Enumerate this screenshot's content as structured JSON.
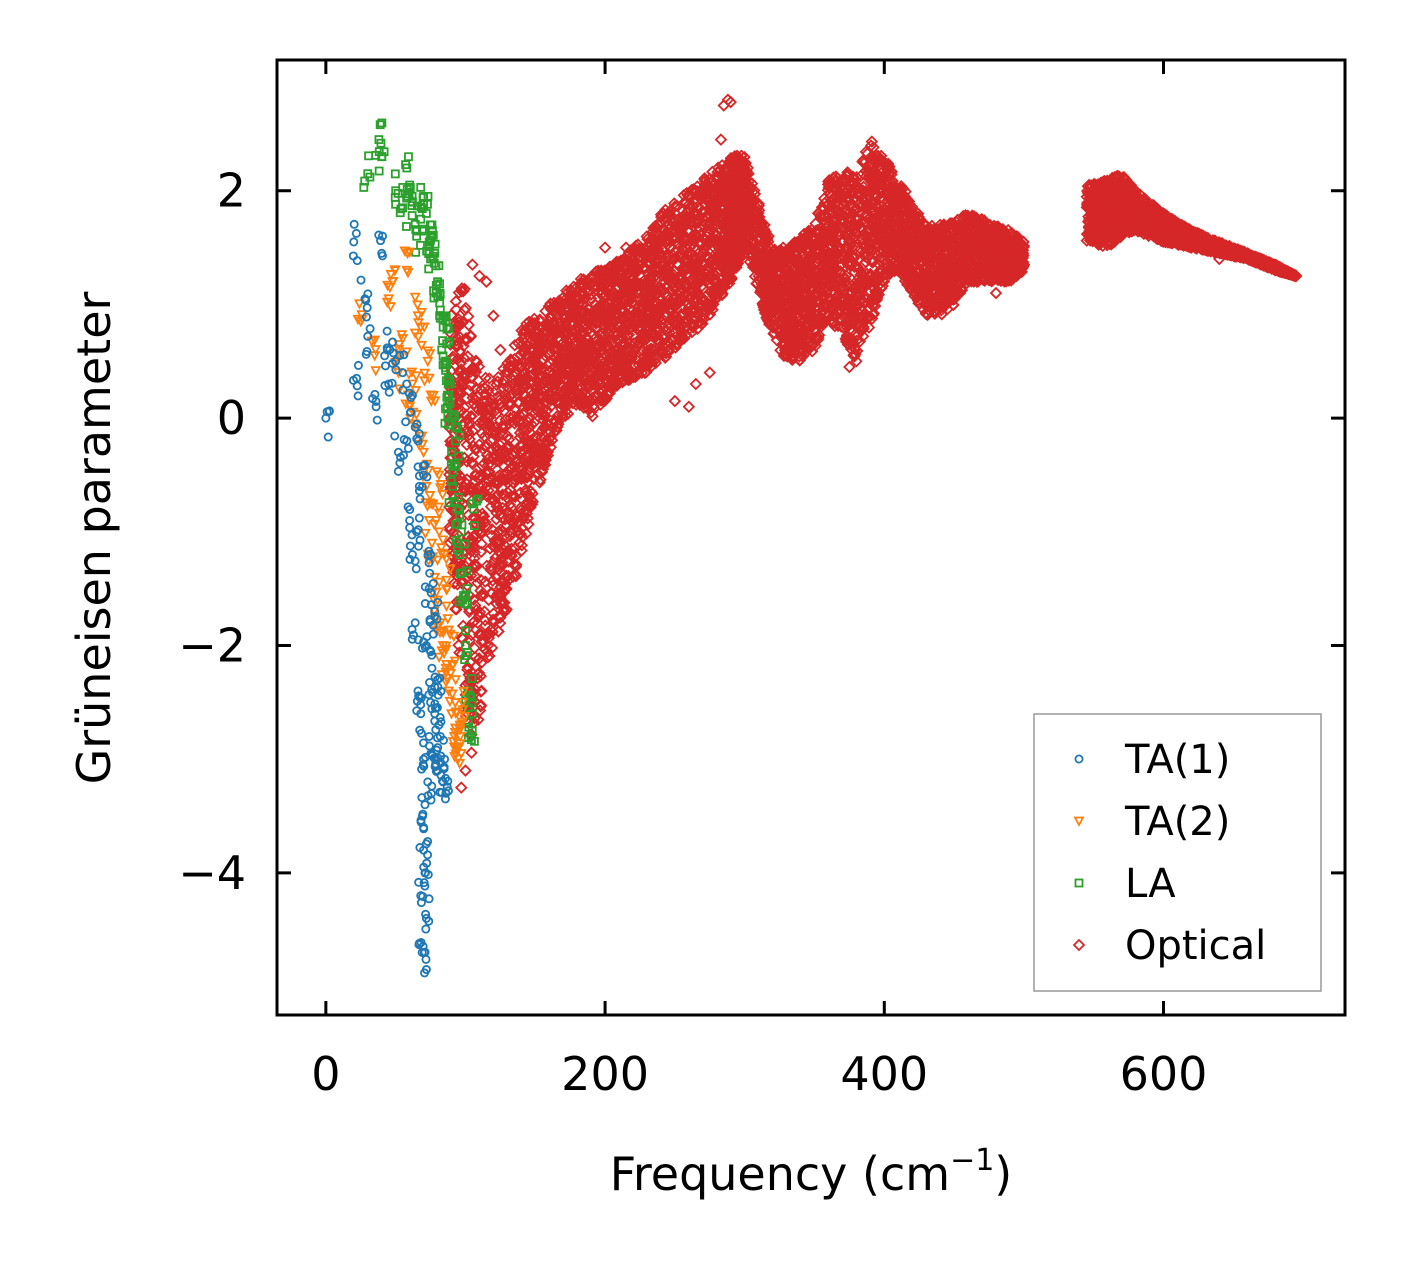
{
  "chart_data": {
    "type": "scatter",
    "title": "",
    "xlabel": "Frequency (cm",
    "xlabel_sup": "−1",
    "xlabel_end": ")",
    "ylabel": "Grüneisen parameter",
    "xlim": [
      -35,
      730
    ],
    "ylim": [
      -5.25,
      3.15
    ],
    "xticks": [
      0,
      200,
      400,
      600
    ],
    "xtick_labels": [
      "0",
      "200",
      "400",
      "600"
    ],
    "yticks": [
      2,
      0,
      -2,
      -4
    ],
    "ytick_labels": [
      "2",
      "0",
      "−2",
      "−4"
    ],
    "grid": false,
    "legend_position": "lower-right",
    "series": [
      {
        "name": "TA(1)",
        "marker": "circle",
        "color": "#1f77b4",
        "x": [
          0,
          20,
          22,
          28,
          30,
          36,
          40,
          44,
          45,
          50,
          52,
          55,
          58,
          60,
          62,
          64,
          66,
          68,
          70,
          70,
          71,
          72,
          72,
          73,
          74,
          75,
          76,
          77,
          78,
          79,
          80,
          82,
          84,
          86,
          68,
          69,
          70,
          71,
          72,
          65,
          67,
          74,
          78,
          80,
          62,
          66,
          70,
          75,
          81,
          85
        ],
        "y": [
          0,
          1.55,
          0.35,
          1.05,
          0.72,
          0.1,
          1.45,
          0.6,
          0.3,
          0.5,
          -0.3,
          0.4,
          -0.2,
          -0.9,
          -1.2,
          -1.8,
          -2.4,
          -2.6,
          -3.0,
          -3.6,
          -4.0,
          -4.4,
          -4.85,
          -3.2,
          -2.8,
          -2.5,
          -2.2,
          -1.9,
          -2.6,
          -3.0,
          -3.1,
          -2.8,
          -3.2,
          -3.3,
          -4.2,
          -4.7,
          -3.8,
          -3.4,
          -2.0,
          -1.0,
          -0.6,
          -1.5,
          -1.7,
          -2.3,
          0.2,
          -0.2,
          -0.5,
          -1.2,
          -2.7,
          -3.0
        ]
      },
      {
        "name": "TA(2)",
        "marker": "triangle-down",
        "color": "#ff7f0e",
        "x": [
          25,
          35,
          45,
          48,
          52,
          55,
          60,
          62,
          65,
          70,
          72,
          74,
          76,
          78,
          80,
          82,
          84,
          86,
          88,
          90,
          92,
          94,
          96,
          98,
          68,
          73,
          77,
          81,
          85,
          89,
          93,
          97,
          58,
          66,
          79,
          87
        ],
        "y": [
          0.85,
          0.55,
          1.05,
          1.2,
          0.4,
          0.7,
          0.1,
          0.3,
          -0.1,
          -0.3,
          -0.6,
          -0.9,
          -1.1,
          -1.4,
          -1.6,
          -1.8,
          -2.0,
          -2.2,
          -2.4,
          -2.6,
          -2.8,
          -2.9,
          -2.7,
          -2.5,
          0.8,
          0.5,
          0.2,
          -0.5,
          -1.2,
          -1.9,
          -2.3,
          -2.95,
          1.3,
          0.9,
          -0.9,
          -1.5
        ]
      },
      {
        "name": "LA",
        "marker": "square",
        "color": "#2ca02c",
        "x": [
          30,
          38,
          40,
          50,
          55,
          58,
          60,
          62,
          65,
          68,
          70,
          72,
          74,
          76,
          78,
          80,
          82,
          84,
          86,
          88,
          90,
          92,
          94,
          96,
          98,
          100,
          102,
          104,
          106,
          85,
          89,
          93,
          97,
          101,
          105,
          75,
          79,
          83,
          87,
          91
        ],
        "y": [
          2.15,
          2.45,
          2.3,
          2.0,
          1.85,
          2.2,
          2.05,
          1.9,
          1.6,
          1.75,
          1.95,
          1.8,
          1.55,
          1.7,
          1.45,
          1.2,
          0.95,
          0.8,
          0.5,
          0.2,
          0.0,
          -0.4,
          -0.8,
          -1.2,
          -1.6,
          -2.0,
          -2.4,
          -2.8,
          -0.8,
          0.9,
          0.3,
          -0.2,
          -1.0,
          -1.5,
          -2.6,
          1.4,
          1.1,
          0.6,
          0.1,
          -0.6
        ]
      },
      {
        "name": "Optical",
        "marker": "diamond",
        "color": "#d62728",
        "bands": [
          {
            "x": [
              88,
              95,
              100,
              105,
              110,
              115,
              120,
              130,
              140,
              150,
              160,
              170,
              180,
              190,
              200,
              210,
              220,
              230,
              240,
              250,
              260,
              270,
              280,
              290,
              300
            ],
            "ylo": [
              -1.0,
              -2.0,
              -2.6,
              -3.0,
              -2.6,
              -2.3,
              -2.0,
              -1.7,
              -1.2,
              -0.7,
              -0.3,
              0.0,
              0.1,
              0.0,
              0.15,
              0.3,
              0.35,
              0.4,
              0.5,
              0.6,
              0.7,
              0.8,
              1.0,
              1.2,
              1.5
            ],
            "yhi": [
              1.0,
              1.1,
              1.2,
              0.7,
              0.5,
              0.4,
              0.3,
              0.5,
              0.8,
              0.9,
              1.0,
              1.1,
              1.2,
              1.3,
              1.3,
              1.4,
              1.5,
              1.6,
              1.8,
              1.9,
              2.0,
              2.1,
              2.2,
              2.3,
              2.35
            ]
          },
          {
            "x": [
              290,
              300,
              310,
              320,
              330,
              340,
              350,
              360,
              370,
              380,
              390,
              400,
              410,
              420,
              430,
              440,
              450,
              460,
              470,
              480,
              490,
              500
            ],
            "ylo": [
              1.2,
              1.5,
              1.1,
              0.7,
              0.5,
              0.5,
              0.6,
              0.9,
              0.7,
              0.5,
              0.8,
              1.2,
              1.3,
              1.1,
              0.9,
              0.9,
              1.0,
              1.2,
              1.2,
              1.2,
              1.2,
              1.3
            ],
            "yhi": [
              2.3,
              2.3,
              1.9,
              1.5,
              1.5,
              1.6,
              1.7,
              2.1,
              2.2,
              2.15,
              2.45,
              2.3,
              2.1,
              1.9,
              1.7,
              1.7,
              1.75,
              1.8,
              1.75,
              1.7,
              1.65,
              1.55
            ]
          },
          {
            "x": [
              545,
              560,
              570,
              580,
              600,
              620,
              640,
              660,
              680,
              695
            ],
            "ylo": [
              1.55,
              1.5,
              1.6,
              1.65,
              1.55,
              1.5,
              1.45,
              1.4,
              1.3,
              1.25
            ],
            "yhi": [
              2.05,
              2.1,
              2.15,
              2.0,
              1.8,
              1.65,
              1.55,
              1.45,
              1.35,
              1.25
            ]
          }
        ],
        "outliers": {
          "x": [
            285,
            288,
            290,
            283,
            200,
            215,
            250,
            260,
            265,
            275,
            105,
            110,
            115,
            120,
            125,
            100,
            97,
            105,
            330,
            340,
            375,
            378,
            380,
            385,
            440,
            455,
            465,
            475,
            480,
            495,
            500,
            550,
            600,
            620,
            640
          ],
          "y": [
            2.75,
            2.8,
            2.78,
            2.45,
            1.5,
            1.5,
            0.15,
            0.1,
            0.3,
            0.4,
            1.35,
            1.25,
            1.2,
            0.9,
            0.6,
            -3.1,
            -3.25,
            -2.4,
            0.6,
            0.7,
            0.45,
            0.55,
            0.5,
            2.0,
            1.7,
            1.6,
            1.75,
            1.3,
            1.1,
            1.45,
            1.35,
            2.0,
            1.6,
            1.5,
            1.4
          ]
        }
      }
    ]
  }
}
